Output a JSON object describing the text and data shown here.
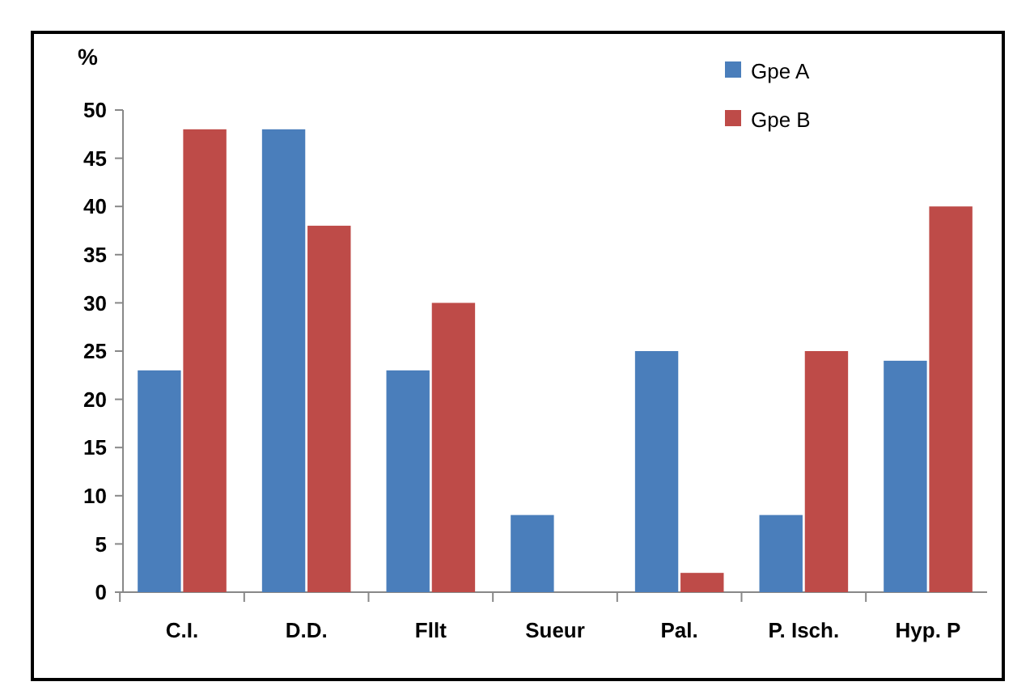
{
  "chart_data": {
    "type": "bar",
    "ylabel": "%",
    "categories": [
      "C.I.",
      "D.D.",
      "Fllt",
      "Sueur",
      "Pal.",
      "P. Isch.",
      "Hyp. P"
    ],
    "series": [
      {
        "name": "Gpe A",
        "color": "#4a7ebb",
        "values": [
          23,
          48,
          23,
          8,
          25,
          8,
          24
        ]
      },
      {
        "name": "Gpe B",
        "color": "#be4b48",
        "values": [
          48,
          38,
          30,
          0,
          2,
          25,
          40
        ]
      }
    ],
    "ylim": [
      0,
      50
    ],
    "yticks": [
      0,
      5,
      10,
      15,
      20,
      25,
      30,
      35,
      40,
      45,
      50
    ],
    "grid": false,
    "legend": "top right"
  }
}
